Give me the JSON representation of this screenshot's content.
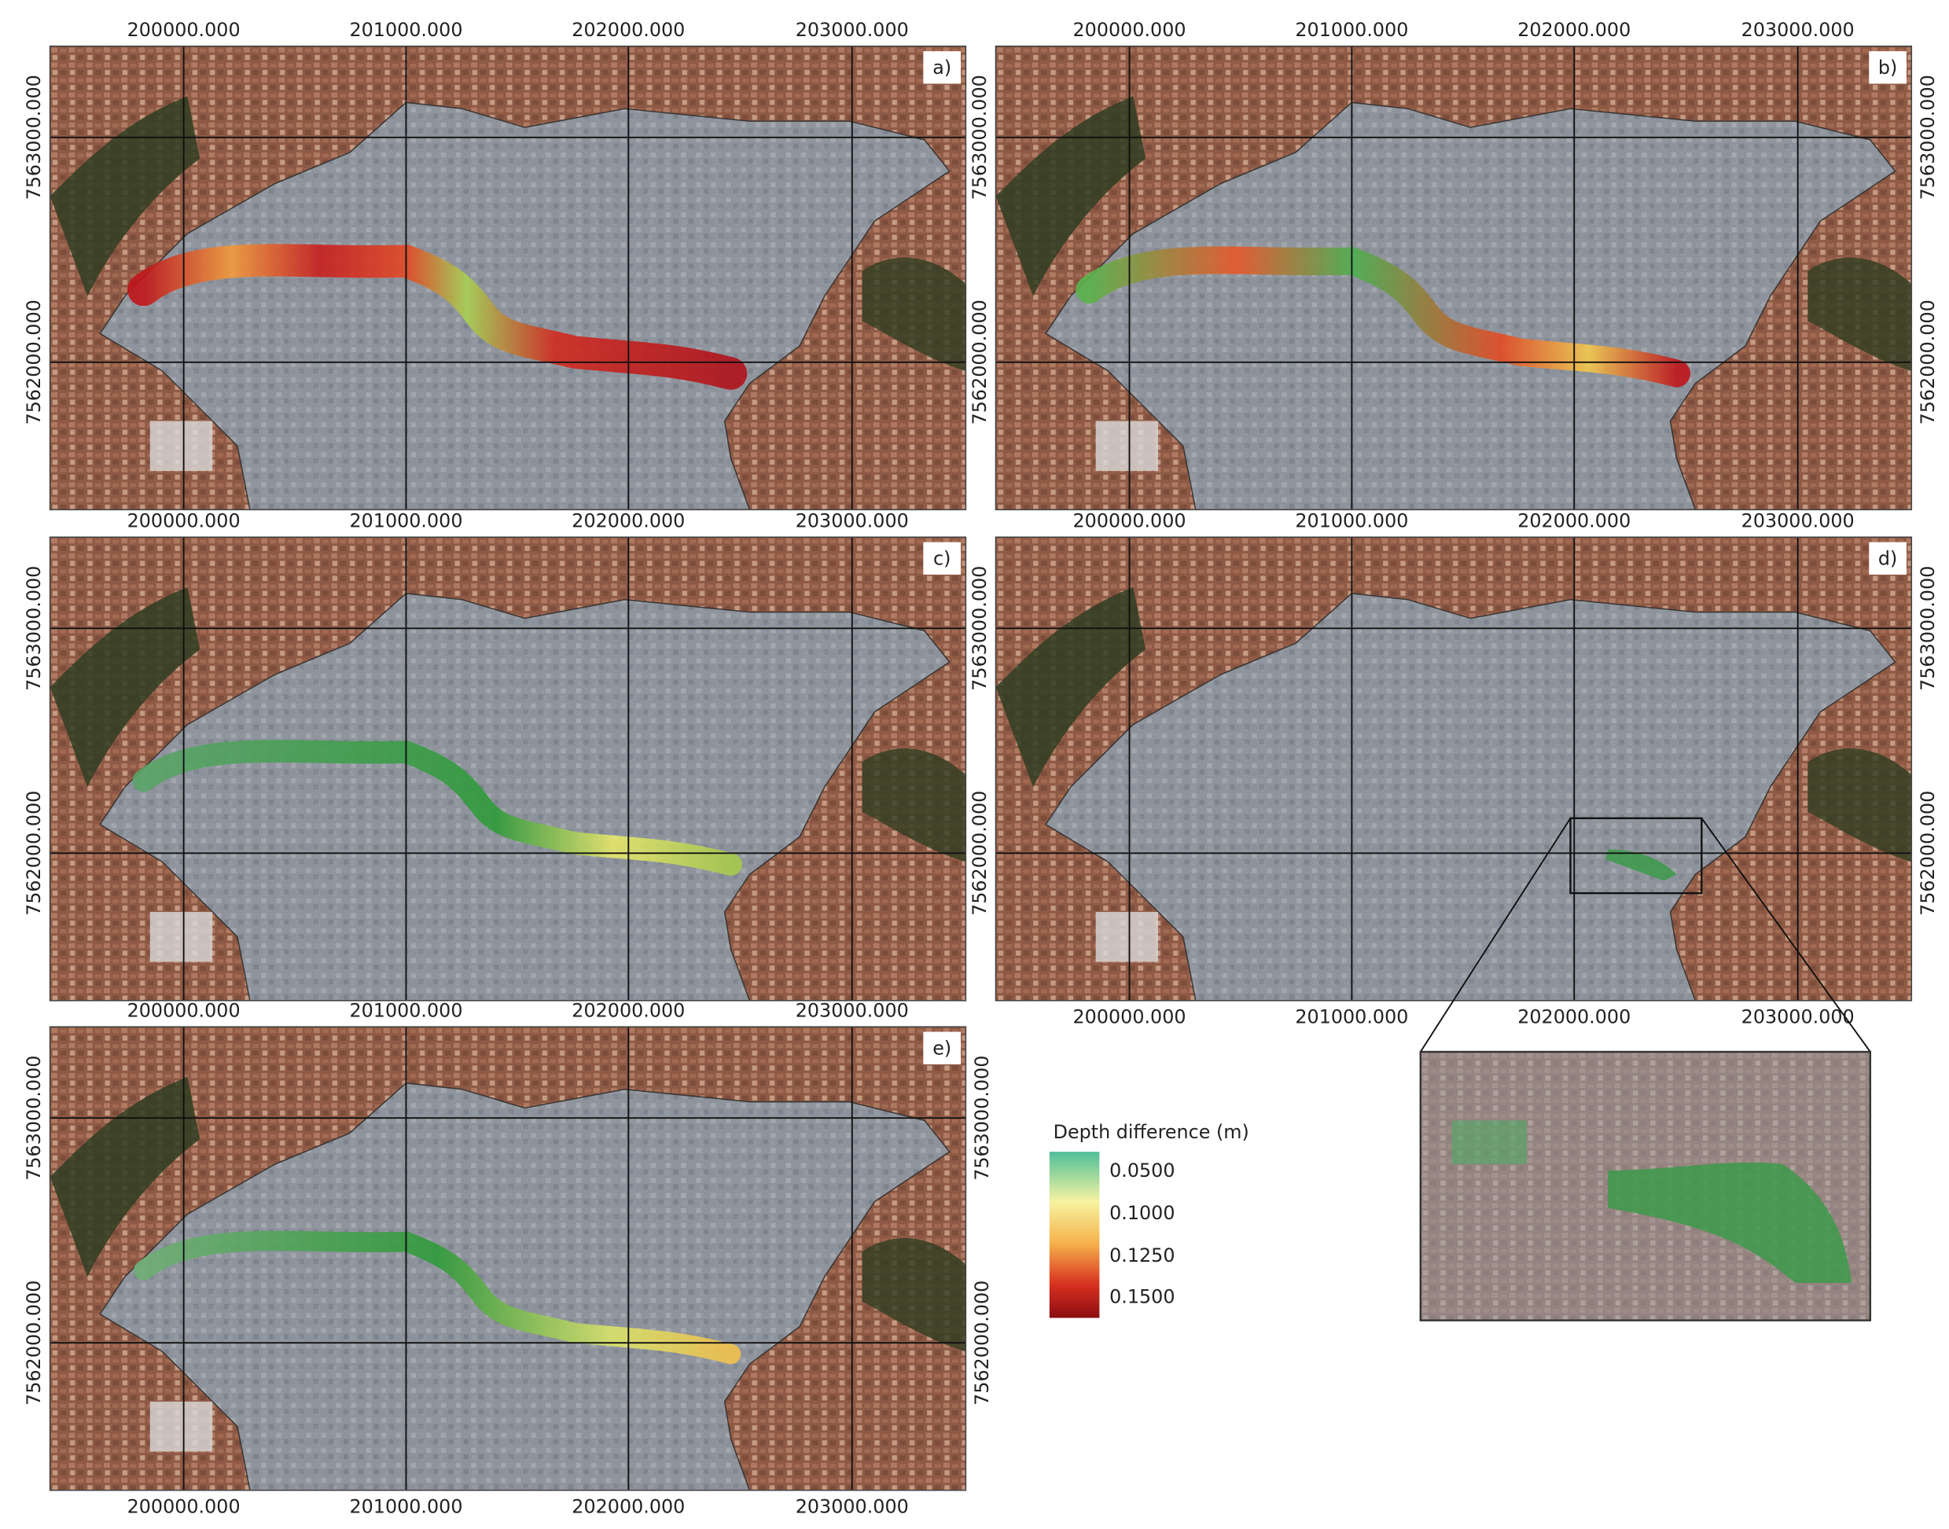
{
  "x_ticks": [
    "200000.000",
    "201000.000",
    "202000.000",
    "203000.000"
  ],
  "y_ticks": [
    "7563000.000",
    "7562000.000"
  ],
  "panels": [
    {
      "label": "a)"
    },
    {
      "label": "b)"
    },
    {
      "label": "c)"
    },
    {
      "label": "d)"
    },
    {
      "label": "e)"
    }
  ],
  "legend": {
    "title": "Depth difference (m)",
    "labels": [
      "0.0500",
      "0.1000",
      "0.1250",
      "0.1500"
    ]
  }
}
